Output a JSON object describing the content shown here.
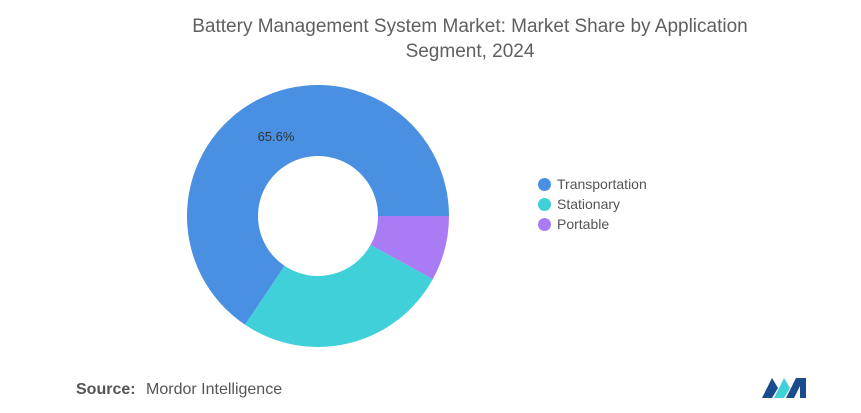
{
  "chart_data": {
    "type": "pie",
    "title": "Battery Management System Market: Market Share by Application Segment, 2024",
    "slices": [
      {
        "label": "Transportation",
        "value": 65.6,
        "color": "#4a90e2",
        "data_label": "65.6%"
      },
      {
        "label": "Stationary",
        "value": 26.4,
        "color": "#3fd0da",
        "data_label": ""
      },
      {
        "label": "Portable",
        "value": 8.0,
        "color": "#a97cf5",
        "data_label": ""
      }
    ],
    "donut": true,
    "legend_position": "right"
  },
  "legend": {
    "items": [
      {
        "label": "Transportation",
        "color": "#4a90e2"
      },
      {
        "label": "Stationary",
        "color": "#3fd0da"
      },
      {
        "label": "Portable",
        "color": "#a97cf5"
      }
    ]
  },
  "source": {
    "label": "Source:",
    "text": "Mordor Intelligence"
  },
  "logo": {
    "icon": "mordor-intelligence-logo",
    "colors": [
      "#1a4b8c",
      "#3fd0da"
    ]
  }
}
